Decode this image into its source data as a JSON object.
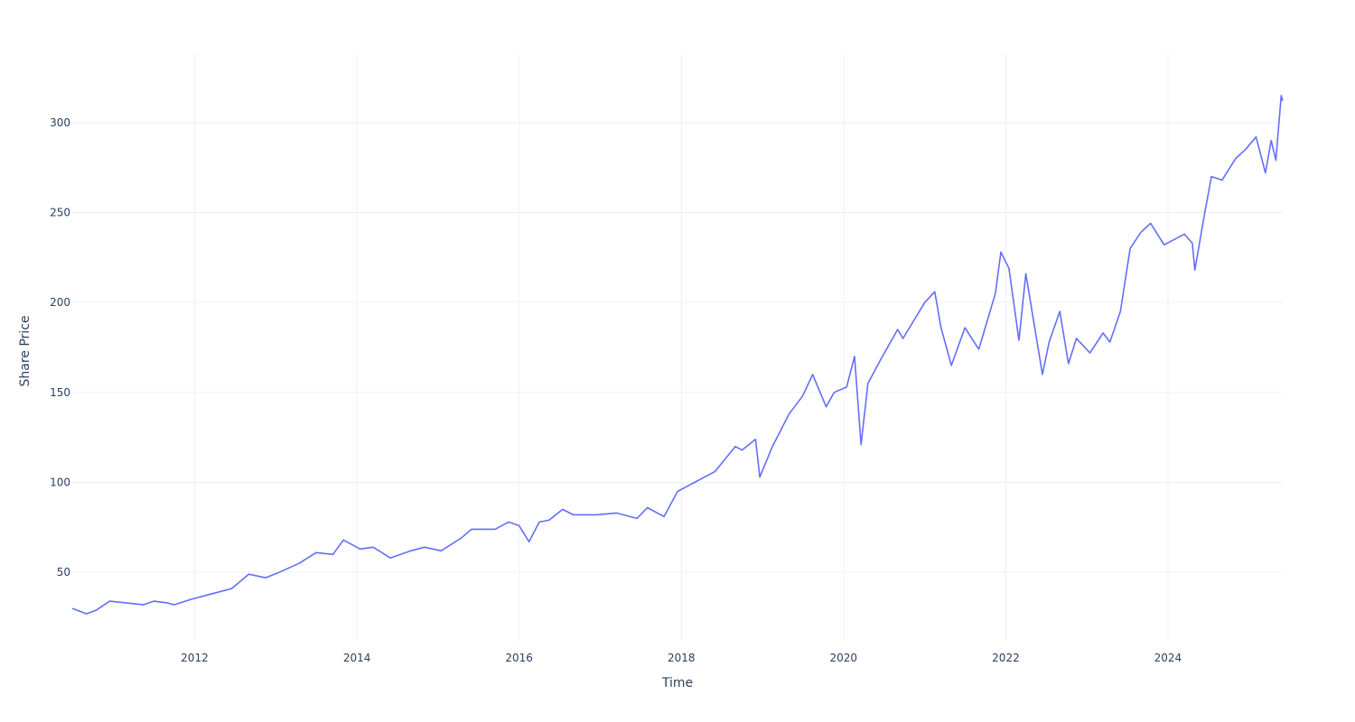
{
  "chart_data": {
    "type": "line",
    "title": "",
    "xlabel": "Time",
    "ylabel": "Share Price",
    "x_tick_labels": [
      "2012",
      "2014",
      "2016",
      "2018",
      "2020",
      "2022",
      "2024"
    ],
    "y_tick_labels": [
      "50",
      "100",
      "150",
      "200",
      "250",
      "300"
    ],
    "xlim": [
      "2010-06-29",
      "2025-06-01"
    ],
    "ylim": [
      12,
      338
    ],
    "grid": true,
    "legend": "none",
    "series": [
      {
        "color": "#636efa",
        "x": [
          "2010-06-29",
          "2010-09-01",
          "2010-10-15",
          "2010-12-15",
          "2011-03-01",
          "2011-05-15",
          "2011-07-01",
          "2011-09-01",
          "2011-10-01",
          "2011-12-15",
          "2012-03-15",
          "2012-06-15",
          "2012-09-01",
          "2012-11-15",
          "2013-01-15",
          "2013-04-15",
          "2013-07-01",
          "2013-09-15",
          "2013-11-01",
          "2014-01-15",
          "2014-03-15",
          "2014-06-01",
          "2014-09-01",
          "2014-11-01",
          "2015-01-15",
          "2015-04-15",
          "2015-06-01",
          "2015-08-01",
          "2015-09-15",
          "2015-11-15",
          "2016-01-01",
          "2016-02-15",
          "2016-04-01",
          "2016-05-15",
          "2016-07-15",
          "2016-09-01",
          "2016-12-15",
          "2017-03-15",
          "2017-06-15",
          "2017-08-01",
          "2017-10-15",
          "2017-12-15",
          "2018-03-01",
          "2018-06-01",
          "2018-09-01",
          "2018-10-01",
          "2018-12-01",
          "2018-12-20",
          "2019-02-15",
          "2019-05-01",
          "2019-07-01",
          "2019-08-15",
          "2019-10-15",
          "2019-11-20",
          "2020-01-15",
          "2020-02-20",
          "2020-03-20",
          "2020-04-20",
          "2020-06-15",
          "2020-09-01",
          "2020-09-25",
          "2021-01-01",
          "2021-02-15",
          "2021-03-15",
          "2021-05-01",
          "2021-07-01",
          "2021-09-01",
          "2021-11-15",
          "2021-12-10",
          "2022-01-15",
          "2022-03-01",
          "2022-04-01",
          "2022-06-15",
          "2022-07-15",
          "2022-09-01",
          "2022-10-10",
          "2022-11-15",
          "2023-01-15",
          "2023-03-15",
          "2023-04-15",
          "2023-06-01",
          "2023-07-15",
          "2023-09-01",
          "2023-10-15",
          "2023-12-15",
          "2024-03-15",
          "2024-04-20",
          "2024-05-01",
          "2024-06-15",
          "2024-07-15",
          "2024-09-01",
          "2024-11-01",
          "2024-12-15",
          "2025-02-01",
          "2025-03-15",
          "2025-04-10",
          "2025-05-01",
          "2025-05-25",
          "2025-06-01"
        ],
        "y": [
          30,
          27,
          29,
          34,
          33,
          32,
          34,
          33,
          32,
          35,
          38,
          41,
          49,
          47,
          50,
          55,
          61,
          60,
          68,
          63,
          64,
          58,
          62,
          64,
          62,
          69,
          74,
          74,
          74,
          78,
          76,
          67,
          78,
          79,
          85,
          82,
          82,
          83,
          80,
          86,
          81,
          95,
          100,
          106,
          120,
          118,
          124,
          103,
          120,
          138,
          148,
          160,
          142,
          150,
          153,
          170,
          121,
          155,
          168,
          185,
          180,
          200,
          206,
          186,
          165,
          186,
          174,
          205,
          228,
          219,
          179,
          216,
          160,
          178,
          195,
          166,
          180,
          172,
          183,
          178,
          195,
          230,
          239,
          244,
          232,
          238,
          233,
          218,
          250,
          270,
          268,
          280,
          285,
          292,
          272,
          290,
          279,
          315,
          312
        ]
      }
    ]
  }
}
